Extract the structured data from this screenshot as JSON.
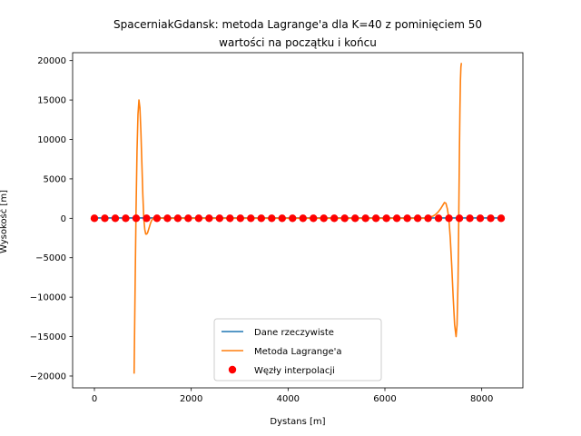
{
  "chart_data": {
    "type": "line",
    "title_lines": [
      "SpacerniakGdansk: metoda Lagrange'a dla K=40 z pominięciem 50",
      "wartości na początku i końcu"
    ],
    "xlabel": "Dystans [m]",
    "ylabel": "Wysokość [m]",
    "xlim": [
      -450,
      8850
    ],
    "ylim": [
      -21500,
      21000
    ],
    "xticks": [
      0,
      2000,
      4000,
      6000,
      8000
    ],
    "yticks": [
      -20000,
      -15000,
      -10000,
      -5000,
      0,
      5000,
      10000,
      15000,
      20000
    ],
    "grid": false,
    "legend": {
      "position": "lower-center",
      "entries": [
        {
          "label": "Dane rzeczywiste",
          "kind": "line",
          "color": "#1f77b4"
        },
        {
          "label": "Metoda Lagrange'a",
          "kind": "line",
          "color": "#ff7f0e"
        },
        {
          "label": "Węzły interpolacji",
          "kind": "scatter",
          "color": "#ff0000"
        }
      ]
    },
    "series": [
      {
        "name": "Dane rzeczywiste",
        "type": "line",
        "color": "#1f77b4",
        "x": [
          0,
          8400
        ],
        "y": [
          40,
          40
        ]
      },
      {
        "name": "Metoda Lagrange'a",
        "type": "line",
        "color": "#ff7f0e",
        "x": [
          820,
          840,
          860,
          880,
          900,
          920,
          940,
          960,
          980,
          1000,
          1020,
          1040,
          1060,
          1080,
          1100,
          1120,
          1140,
          1160,
          1180,
          1200,
          1240,
          1280,
          1320,
          1360,
          1400,
          1500,
          2000,
          3000,
          4000,
          5000,
          6000,
          6800,
          6900,
          7000,
          7050,
          7100,
          7150,
          7200,
          7230,
          7260,
          7290,
          7320,
          7350,
          7380,
          7410,
          7440,
          7470,
          7490,
          7510,
          7520,
          7530,
          7540,
          7550,
          7560,
          7570,
          7580
        ],
        "y": [
          -19700,
          -9000,
          1000,
          8500,
          13200,
          15000,
          14000,
          11000,
          7000,
          3000,
          0,
          -1400,
          -2000,
          -2000,
          -1800,
          -1400,
          -1000,
          -600,
          -300,
          -100,
          150,
          200,
          100,
          50,
          10,
          0,
          0,
          0,
          0,
          0,
          0,
          0,
          100,
          300,
          500,
          800,
          1200,
          1700,
          2000,
          1900,
          1200,
          0,
          -2500,
          -6000,
          -10000,
          -13500,
          -15000,
          -13500,
          -8000,
          -3000,
          3000,
          9000,
          14000,
          17500,
          19200,
          19700
        ]
      },
      {
        "name": "Węzły interpolacji",
        "type": "scatter",
        "color": "#ff0000",
        "x": [
          0,
          215,
          431,
          646,
          862,
          1077,
          1292,
          1508,
          1723,
          1938,
          2154,
          2369,
          2585,
          2800,
          3015,
          3231,
          3446,
          3662,
          3877,
          4092,
          4308,
          4523,
          4738,
          4954,
          5169,
          5385,
          5600,
          5815,
          6031,
          6246,
          6462,
          6677,
          6892,
          7108,
          7323,
          7538,
          7754,
          7969,
          8185,
          8400
        ],
        "y": [
          0,
          0,
          0,
          0,
          0,
          0,
          0,
          0,
          0,
          0,
          0,
          0,
          0,
          0,
          0,
          0,
          0,
          0,
          0,
          0,
          0,
          0,
          0,
          0,
          0,
          0,
          0,
          0,
          0,
          0,
          0,
          0,
          0,
          0,
          0,
          0,
          0,
          0,
          0,
          0
        ]
      }
    ]
  }
}
